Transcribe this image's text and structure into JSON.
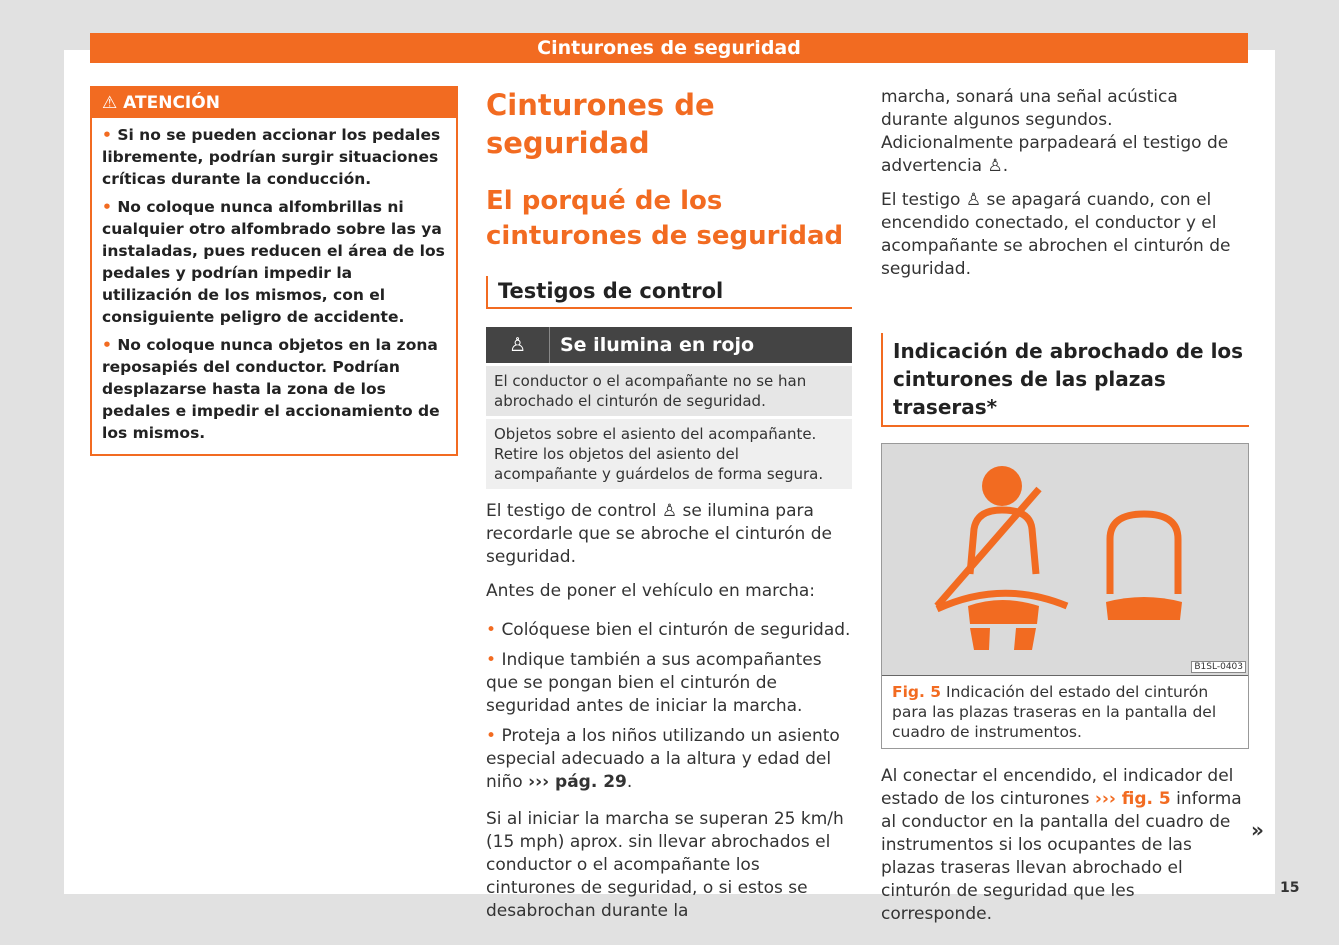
{
  "header": {
    "title": "Cinturones de seguridad"
  },
  "warning": {
    "title": "ATENCIÓN",
    "icon": "warning-triangle-icon",
    "items": [
      "Si no se pueden accionar los pedales libremente, podrían surgir situaciones críticas durante la conducción.",
      "No coloque nunca alfombrillas ni cualquier otro alfombrado sobre las ya instaladas, pues reducen el área de los pedales y podrían impedir la utilización de los mismos, con el consiguiente peligro de accidente.",
      "No coloque nunca objetos en la zona reposapiés del conductor. Podrían desplazarse hasta la zona de los pedales e impedir el accionamiento de los mismos."
    ]
  },
  "main": {
    "title": "Cinturones de seguridad",
    "subtitle": "El porqué de los cinturones de seguridad",
    "section": "Testigos de control",
    "table": {
      "icon": "seatbelt-warning-icon",
      "header": "Se ilumina en rojo",
      "rows": [
        "El conductor o el acompañante no se han abrochado el cinturón de seguridad.",
        "Objetos sobre el asiento del acompañante. Retire los objetos del asiento del acompañante y guárdelos de forma segura."
      ]
    },
    "p1a": "El testigo de control",
    "p1b": "se ilumina para recordarle que se abroche el cinturón de seguridad.",
    "p2": "Antes de poner el vehículo en marcha:",
    "bullets": [
      "Colóquese bien el cinturón de seguridad.",
      "Indique también a sus acompañantes que se pongan bien el cinturón de seguridad antes de iniciar la marcha.",
      "Proteja a los niños utilizando un asiento especial adecuado a la altura y edad del niño"
    ],
    "bullet3_link": "››› pág. 29",
    "p3": "Si al iniciar la marcha se superan 25 km/h (15 mph) aprox. sin llevar abrochados el conductor o el acompañante los cinturones de seguridad, o si estos se desabrochan durante la"
  },
  "right": {
    "p1a": "marcha, sonará una señal acústica durante algunos segundos. Adicionalmente parpadeará el testigo de advertencia",
    "p2a": "El testigo",
    "p2b": "se apagará cuando, con el encendido conectado, el conductor y el acompañante se abrochen el cinturón de seguridad.",
    "section": "Indicación de abrochado de los cinturones de las plazas traseras*",
    "figure": {
      "id": "B1SL-0403",
      "label": "Fig. 5",
      "caption": "Indicación del estado del cinturón para las plazas traseras en la pantalla del cuadro de instrumentos."
    },
    "p3a": "Al conectar el encendido, el indicador del estado de los cinturones",
    "p3link": "››› fig. 5",
    "p3b": "informa al conductor en la pantalla del cuadro de instrumentos si los ocupantes de las plazas traseras llevan abrochado el cinturón de seguridad que les corresponde."
  },
  "footer": {
    "continue": "»",
    "page": "15"
  },
  "colors": {
    "accent": "#f26b21",
    "table_header": "#444444"
  }
}
